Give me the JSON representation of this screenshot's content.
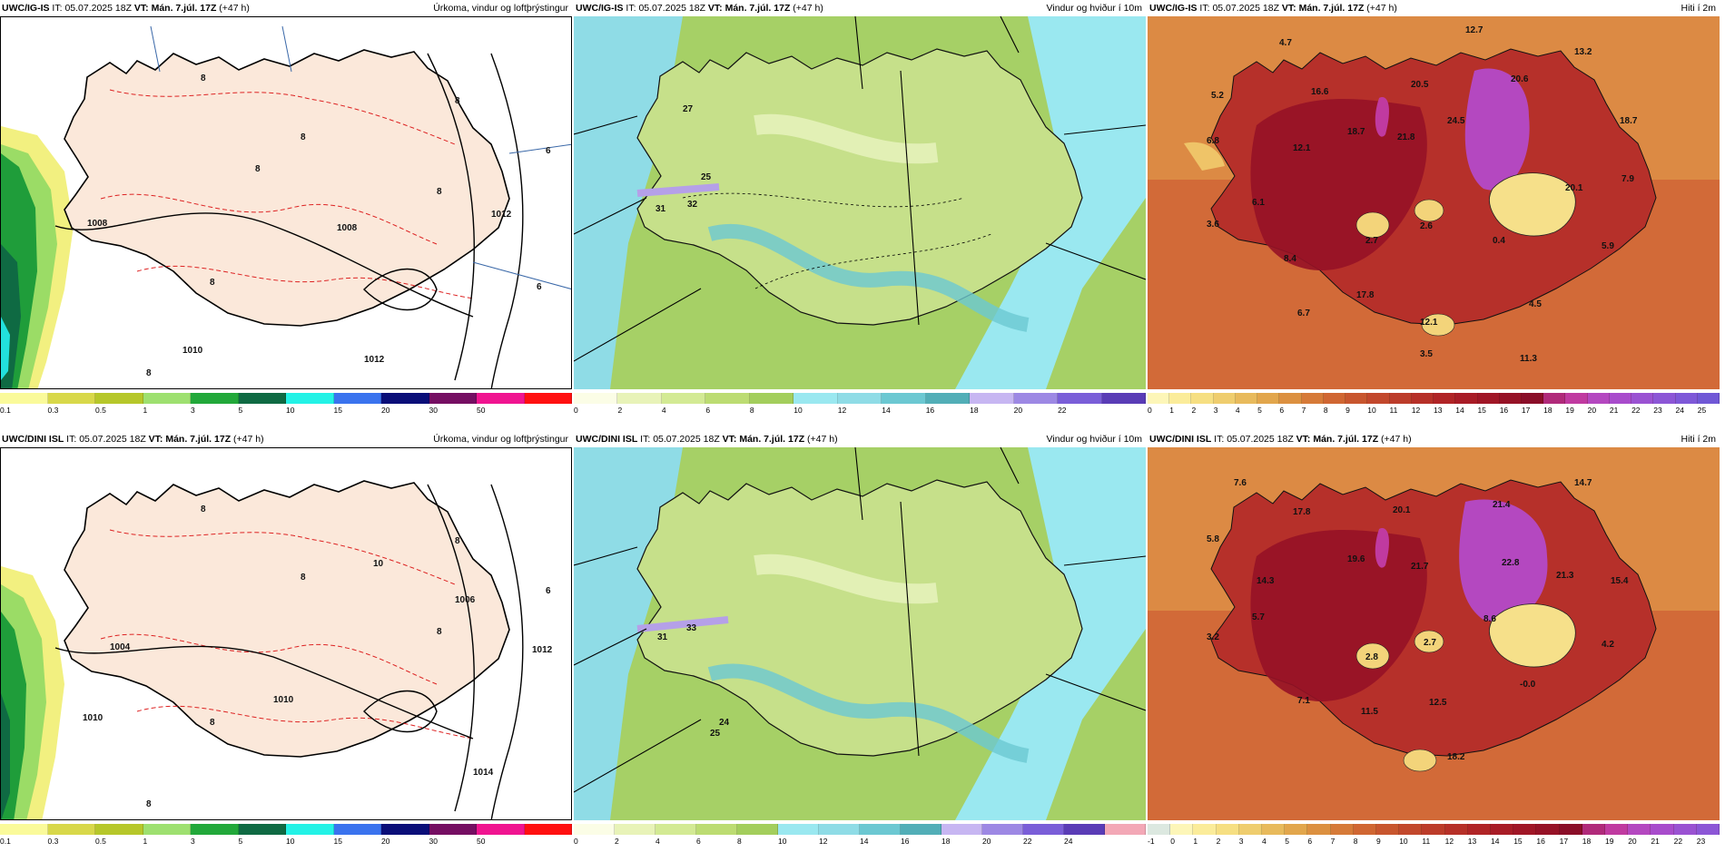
{
  "panels": [
    {
      "model": "UWC/IG-IS",
      "it_label": "IT:",
      "it": "05.07.2025 18Z",
      "vt_label": "VT:",
      "vt": "Mán. 7.júl. 17Z",
      "lead": "(+47 h)",
      "title": "Úrkoma, vindur og loftþrýstingur",
      "map_labels": [
        "8",
        "8",
        "8",
        "8",
        "8",
        "8",
        "8",
        "1008",
        "1008",
        "1010",
        "1012",
        "1012",
        "6",
        "6"
      ],
      "ticks": [
        "0.1",
        "0.3",
        "0.5",
        "1",
        "3",
        "5",
        "10",
        "15",
        "20",
        "30",
        "50"
      ],
      "colors": [
        "#fafa9a",
        "#d8d84a",
        "#b6c72a",
        "#9ee070",
        "#22a83a",
        "#0f6a43",
        "#23f2e6",
        "#3a73ee",
        "#0a0e78",
        "#750e62",
        "#f01490",
        "#ff1010"
      ]
    },
    {
      "model": "UWC/IG-IS",
      "it_label": "IT:",
      "it": "05.07.2025 18Z",
      "vt_label": "VT:",
      "vt": "Mán. 7.júl. 17Z",
      "lead": "(+47 h)",
      "title": "Vindur og hviður í 10m",
      "map_labels": [
        "27",
        "25",
        "31",
        "32"
      ],
      "ticks": [
        "0",
        "2",
        "4",
        "6",
        "8",
        "10",
        "12",
        "14",
        "16",
        "18",
        "20",
        "22"
      ],
      "colors": [
        "#fbfde6",
        "#e8f3b8",
        "#d3ea94",
        "#bcdc72",
        "#a3ce5c",
        "#9ae8f0",
        "#8fdce6",
        "#6cc8d2",
        "#52aeb7",
        "#c7b6f2",
        "#9d88e4",
        "#7a5ed8",
        "#5a3cb6"
      ]
    },
    {
      "model": "UWC/IG-IS",
      "it_label": "IT:",
      "it": "05.07.2025 18Z",
      "vt_label": "VT:",
      "vt": "Mán. 7.júl. 17Z",
      "lead": "(+47 h)",
      "title": "Hiti í 2m",
      "map_labels": [
        "12.7",
        "4.7",
        "13.2",
        "5.2",
        "16.6",
        "20.5",
        "20.6",
        "6.8",
        "12.1",
        "18.7",
        "21.8",
        "24.5",
        "18.7",
        "7.9",
        "20.1",
        "6.1",
        "3.6",
        "2.7",
        "2.6",
        "0.4",
        "8.4",
        "5.9",
        "17.8",
        "6.7",
        "12.1",
        "4.5",
        "3.5",
        "11.3"
      ],
      "ticks": [
        "0",
        "1",
        "2",
        "3",
        "4",
        "5",
        "6",
        "7",
        "8",
        "9",
        "10",
        "11",
        "12",
        "13",
        "14",
        "15",
        "16",
        "17",
        "18",
        "19",
        "20",
        "21",
        "22",
        "23",
        "24",
        "25"
      ],
      "colors": [
        "#fdf6b8",
        "#fbec9a",
        "#f6df82",
        "#efcd6e",
        "#e8ba5c",
        "#e2a64c",
        "#dc9040",
        "#d67a38",
        "#d06632",
        "#c8562e",
        "#c2482c",
        "#bc3c2a",
        "#b63028",
        "#b02426",
        "#a81c26",
        "#a01626",
        "#961226",
        "#8a0e28",
        "#b02a7a",
        "#c03aa0",
        "#b448c0",
        "#a84ccc",
        "#9a52d2",
        "#8c56d6",
        "#7e58d8",
        "#7058d6"
      ]
    },
    {
      "model": "UWC/DINI ISL",
      "it_label": "IT:",
      "it": "05.07.2025 18Z",
      "vt_label": "VT:",
      "vt": "Mán. 7.júl. 17Z",
      "lead": "(+47 h)",
      "title": "Úrkoma, vindur og loftþrýstingur",
      "map_labels": [
        "10",
        "8",
        "8",
        "8",
        "8",
        "8",
        "8",
        "1004",
        "1006",
        "1010",
        "1010",
        "1012",
        "1014",
        "6"
      ],
      "ticks": [
        "0.1",
        "0.3",
        "0.5",
        "1",
        "3",
        "5",
        "10",
        "15",
        "20",
        "30",
        "50"
      ],
      "colors": [
        "#fafa9a",
        "#d8d84a",
        "#b6c72a",
        "#9ee070",
        "#22a83a",
        "#0f6a43",
        "#23f2e6",
        "#3a73ee",
        "#0a0e78",
        "#750e62",
        "#f01490",
        "#ff1010"
      ]
    },
    {
      "model": "UWC/DINI ISL",
      "it_label": "IT:",
      "it": "05.07.2025 18Z",
      "vt_label": "VT:",
      "vt": "Mán. 7.júl. 17Z",
      "lead": "(+47 h)",
      "title": "Vindur og hviður í 10m",
      "map_labels": [
        "31",
        "33",
        "24",
        "25"
      ],
      "ticks": [
        "0",
        "2",
        "4",
        "6",
        "8",
        "10",
        "12",
        "14",
        "16",
        "18",
        "20",
        "22",
        "24"
      ],
      "colors": [
        "#fbfde6",
        "#e8f3b8",
        "#d3ea94",
        "#bcdc72",
        "#a3ce5c",
        "#9ae8f0",
        "#8fdce6",
        "#6cc8d2",
        "#52aeb7",
        "#c7b6f2",
        "#9d88e4",
        "#7a5ed8",
        "#5a3cb6",
        "#f3a8b6"
      ]
    },
    {
      "model": "UWC/DINI ISL",
      "it_label": "IT:",
      "it": "05.07.2025 18Z",
      "vt_label": "VT:",
      "vt": "Mán. 7.júl. 17Z",
      "lead": "(+47 h)",
      "title": "Hiti í 2m",
      "map_labels": [
        "7.6",
        "14.7",
        "17.8",
        "20.1",
        "21.4",
        "5.8",
        "19.6",
        "21.7",
        "22.8",
        "21.3",
        "15.4",
        "14.3",
        "8.6",
        "5.7",
        "3.2",
        "2.8",
        "2.7",
        "4.2",
        "-0.0",
        "7.1",
        "11.5",
        "12.5",
        "18.2"
      ],
      "ticks": [
        "-1",
        "0",
        "1",
        "2",
        "3",
        "4",
        "5",
        "6",
        "7",
        "8",
        "9",
        "10",
        "11",
        "12",
        "13",
        "14",
        "15",
        "16",
        "17",
        "18",
        "19",
        "20",
        "21",
        "22",
        "23"
      ],
      "colors": [
        "#dce8e0",
        "#fdf6b8",
        "#fbec9a",
        "#f6df82",
        "#efcd6e",
        "#e8ba5c",
        "#e2a64c",
        "#dc9040",
        "#d67a38",
        "#d06632",
        "#c8562e",
        "#c2482c",
        "#bc3c2a",
        "#b63028",
        "#b02426",
        "#a81c26",
        "#a01626",
        "#961226",
        "#8a0e28",
        "#b02a7a",
        "#c03aa0",
        "#b448c0",
        "#a84ccc",
        "#9a52d2",
        "#8c56d6"
      ]
    }
  ]
}
